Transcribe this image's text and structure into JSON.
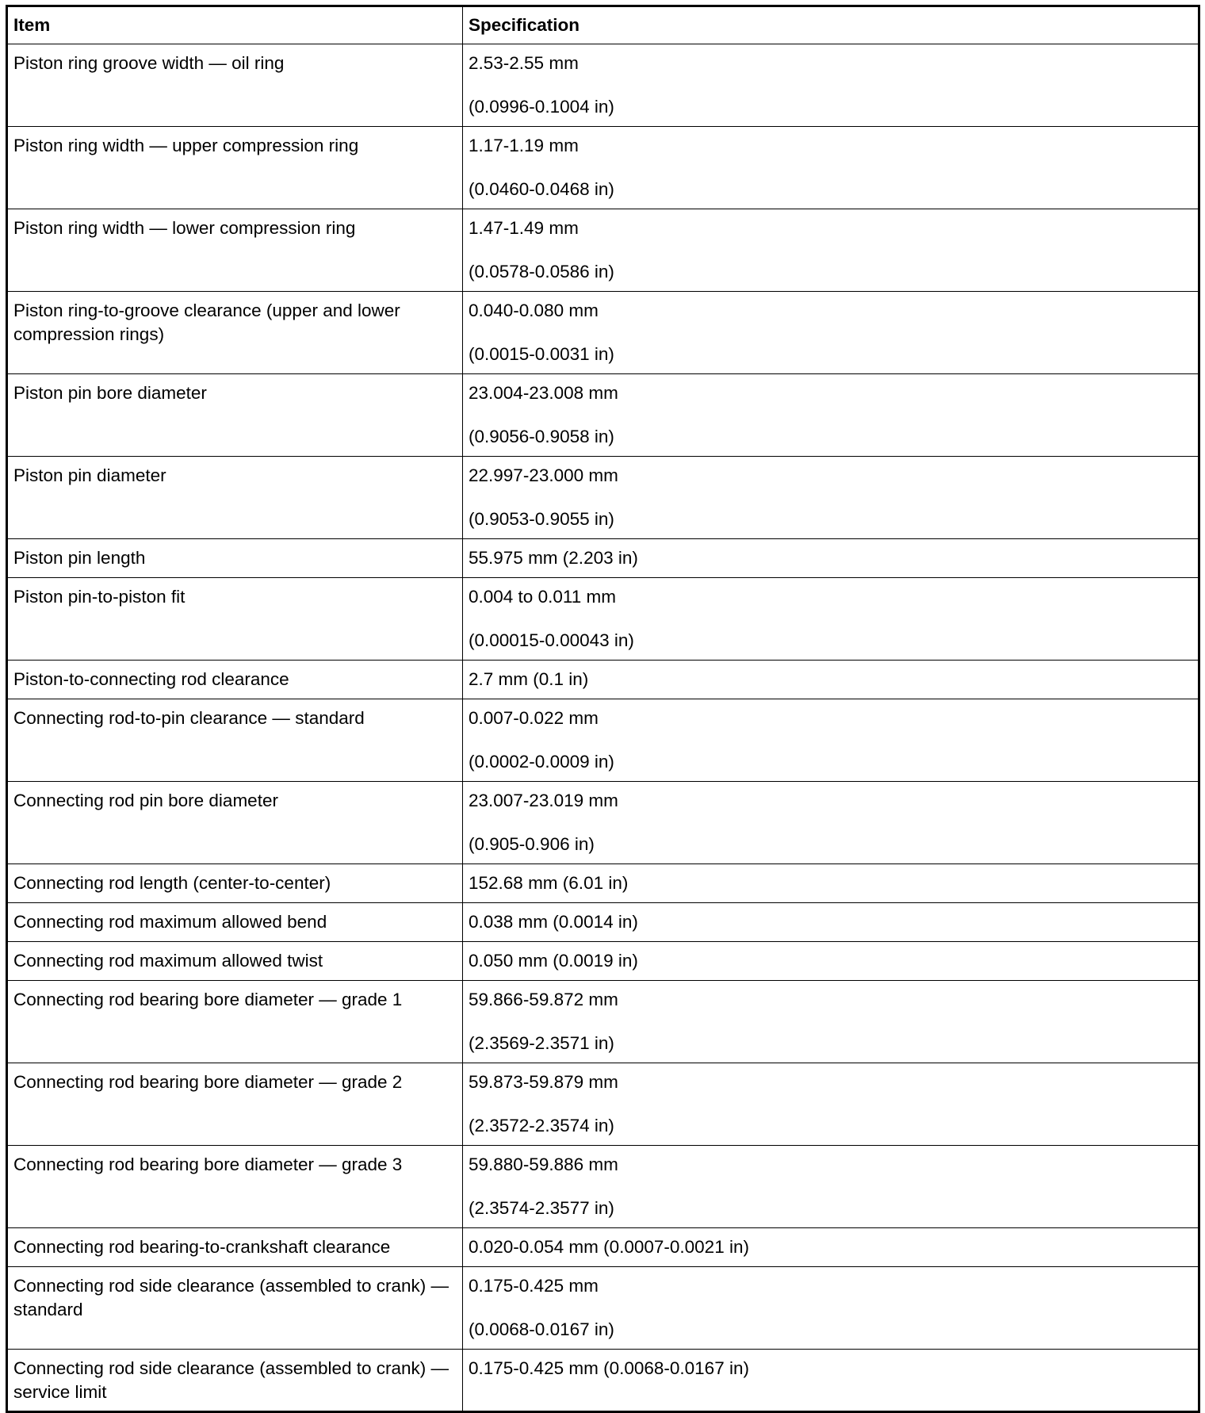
{
  "headers": {
    "item": "Item",
    "spec": "Specification"
  },
  "rows": [
    {
      "item": "Piston ring groove width — oil ring",
      "spec": [
        "2.53-2.55 mm",
        "(0.0996-0.1004 in)"
      ]
    },
    {
      "item": "Piston ring width — upper compression ring",
      "spec": [
        "1.17-1.19 mm",
        "(0.0460-0.0468 in)"
      ]
    },
    {
      "item": "Piston ring width — lower compression ring",
      "spec": [
        "1.47-1.49 mm",
        "(0.0578-0.0586 in)"
      ]
    },
    {
      "item": "Piston ring-to-groove clearance (upper and lower compression rings)",
      "spec": [
        "0.040-0.080 mm",
        "(0.0015-0.0031 in)"
      ]
    },
    {
      "item": "Piston pin bore diameter",
      "spec": [
        "23.004-23.008 mm",
        "(0.9056-0.9058 in)"
      ]
    },
    {
      "item": "Piston pin diameter",
      "spec": [
        "22.997-23.000 mm",
        "(0.9053-0.9055 in)"
      ]
    },
    {
      "item": "Piston pin length",
      "spec": [
        "55.975 mm (2.203 in)"
      ]
    },
    {
      "item": "Piston pin-to-piston fit",
      "spec": [
        "0.004 to 0.011 mm",
        "(0.00015-0.00043 in)"
      ]
    },
    {
      "item": "Piston-to-connecting rod clearance",
      "spec": [
        "2.7 mm (0.1 in)"
      ]
    },
    {
      "item": "Connecting rod-to-pin clearance — standard",
      "spec": [
        "0.007-0.022 mm",
        "(0.0002-0.0009 in)"
      ]
    },
    {
      "item": "Connecting rod pin bore diameter",
      "spec": [
        "23.007-23.019 mm",
        "(0.905-0.906 in)"
      ]
    },
    {
      "item": "Connecting rod length (center-to-center)",
      "spec": [
        "152.68 mm (6.01 in)"
      ]
    },
    {
      "item": "Connecting rod maximum allowed bend",
      "spec": [
        "0.038 mm (0.0014 in)"
      ]
    },
    {
      "item": "Connecting rod maximum allowed twist",
      "spec": [
        "0.050 mm (0.0019 in)"
      ]
    },
    {
      "item": "Connecting rod bearing bore diameter — grade 1",
      "spec": [
        "59.866-59.872 mm",
        "(2.3569-2.3571 in)"
      ]
    },
    {
      "item": "Connecting rod bearing bore diameter — grade 2",
      "spec": [
        "59.873-59.879 mm",
        "(2.3572-2.3574 in)"
      ]
    },
    {
      "item": "Connecting rod bearing bore diameter — grade 3",
      "spec": [
        "59.880-59.886 mm",
        "(2.3574-2.3577 in)"
      ]
    },
    {
      "item": "Connecting rod bearing-to-crankshaft clearance",
      "spec": [
        "0.020-0.054 mm (0.0007-0.0021 in)"
      ]
    },
    {
      "item": "Connecting rod side clearance (assembled to crank) — standard",
      "spec": [
        "0.175-0.425 mm",
        "(0.0068-0.0167 in)"
      ]
    },
    {
      "item": "Connecting rod side clearance (assembled to crank) — service limit",
      "spec": [
        "0.175-0.425 mm (0.0068-0.0167 in)"
      ]
    }
  ]
}
